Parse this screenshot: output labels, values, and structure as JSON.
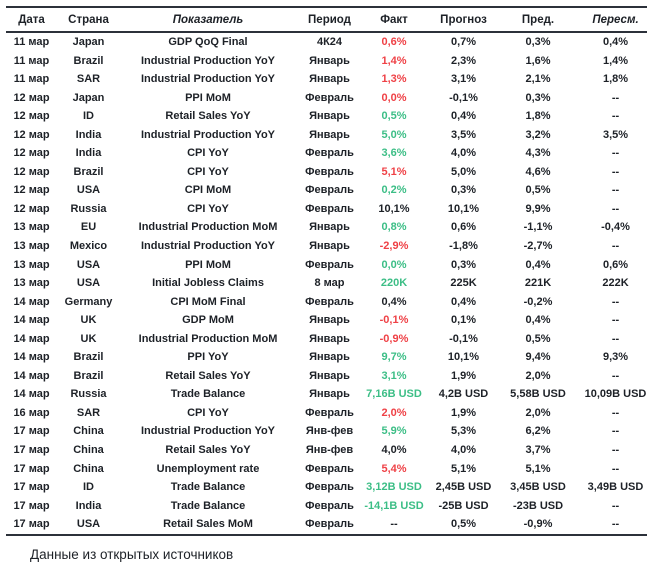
{
  "colors": {
    "negative": "#ef4146",
    "positive": "#3cbe86",
    "neutral": "#1d2127",
    "border": "#2c313a"
  },
  "table": {
    "columns": [
      {
        "key": "date",
        "label": "Дата",
        "italic": false
      },
      {
        "key": "country",
        "label": "Страна",
        "italic": false
      },
      {
        "key": "indicator",
        "label": "Показатель",
        "italic": true
      },
      {
        "key": "period",
        "label": "Период",
        "italic": false
      },
      {
        "key": "fact",
        "label": "Факт",
        "italic": false
      },
      {
        "key": "forecast",
        "label": "Прогноз",
        "italic": false
      },
      {
        "key": "previous",
        "label": "Пред.",
        "italic": false
      },
      {
        "key": "revised",
        "label": "Пересм.",
        "italic": true
      }
    ],
    "rows": [
      {
        "date": "11 мар",
        "country": "Japan",
        "indicator": "GDP QoQ Final",
        "period": "4К24",
        "fact": "0,6%",
        "fact_color": "down",
        "forecast": "0,7%",
        "previous": "0,3%",
        "revised": "0,4%"
      },
      {
        "date": "11 мар",
        "country": "Brazil",
        "indicator": "Industrial Production YoY",
        "period": "Январь",
        "fact": "1,4%",
        "fact_color": "down",
        "forecast": "2,3%",
        "previous": "1,6%",
        "revised": "1,4%"
      },
      {
        "date": "11 мар",
        "country": "SAR",
        "indicator": "Industrial Production YoY",
        "period": "Январь",
        "fact": "1,3%",
        "fact_color": "down",
        "forecast": "3,1%",
        "previous": "2,1%",
        "revised": "1,8%"
      },
      {
        "date": "12 мар",
        "country": "Japan",
        "indicator": "PPI MoM",
        "period": "Февраль",
        "fact": "0,0%",
        "fact_color": "down",
        "forecast": "-0,1%",
        "previous": "0,3%",
        "revised": "--"
      },
      {
        "date": "12 мар",
        "country": "ID",
        "indicator": "Retail Sales YoY",
        "period": "Январь",
        "fact": "0,5%",
        "fact_color": "up",
        "forecast": "0,4%",
        "previous": "1,8%",
        "revised": "--"
      },
      {
        "date": "12 мар",
        "country": "India",
        "indicator": "Industrial Production YoY",
        "period": "Январь",
        "fact": "5,0%",
        "fact_color": "up",
        "forecast": "3,5%",
        "previous": "3,2%",
        "revised": "3,5%"
      },
      {
        "date": "12 мар",
        "country": "India",
        "indicator": "CPI YoY",
        "period": "Февраль",
        "fact": "3,6%",
        "fact_color": "up",
        "forecast": "4,0%",
        "previous": "4,3%",
        "revised": "--"
      },
      {
        "date": "12 мар",
        "country": "Brazil",
        "indicator": "CPI YoY",
        "period": "Февраль",
        "fact": "5,1%",
        "fact_color": "down",
        "forecast": "5,0%",
        "previous": "4,6%",
        "revised": "--"
      },
      {
        "date": "12 мар",
        "country": "USA",
        "indicator": "CPI MoM",
        "period": "Февраль",
        "fact": "0,2%",
        "fact_color": "up",
        "forecast": "0,3%",
        "previous": "0,5%",
        "revised": "--"
      },
      {
        "date": "12 мар",
        "country": "Russia",
        "indicator": "CPI YoY",
        "period": "Февраль",
        "fact": "10,1%",
        "fact_color": "flat",
        "forecast": "10,1%",
        "previous": "9,9%",
        "revised": "--"
      },
      {
        "date": "13 мар",
        "country": "EU",
        "indicator": "Industrial Production MoM",
        "period": "Январь",
        "fact": "0,8%",
        "fact_color": "up",
        "forecast": "0,6%",
        "previous": "-1,1%",
        "revised": "-0,4%"
      },
      {
        "date": "13 мар",
        "country": "Mexico",
        "indicator": "Industrial Production YoY",
        "period": "Январь",
        "fact": "-2,9%",
        "fact_color": "down",
        "forecast": "-1,8%",
        "previous": "-2,7%",
        "revised": "--"
      },
      {
        "date": "13 мар",
        "country": "USA",
        "indicator": "PPI MoM",
        "period": "Февраль",
        "fact": "0,0%",
        "fact_color": "up",
        "forecast": "0,3%",
        "previous": "0,4%",
        "revised": "0,6%"
      },
      {
        "date": "13 мар",
        "country": "USA",
        "indicator": "Initial Jobless Claims",
        "period": "8 мар",
        "fact": "220K",
        "fact_color": "up",
        "forecast": "225K",
        "previous": "221K",
        "revised": "222K"
      },
      {
        "date": "14 мар",
        "country": "Germany",
        "indicator": "CPI MoM Final",
        "period": "Февраль",
        "fact": "0,4%",
        "fact_color": "flat",
        "forecast": "0,4%",
        "previous": "-0,2%",
        "revised": "--"
      },
      {
        "date": "14 мар",
        "country": "UK",
        "indicator": "GDP MoM",
        "period": "Январь",
        "fact": "-0,1%",
        "fact_color": "down",
        "forecast": "0,1%",
        "previous": "0,4%",
        "revised": "--"
      },
      {
        "date": "14 мар",
        "country": "UK",
        "indicator": "Industrial Production MoM",
        "period": "Январь",
        "fact": "-0,9%",
        "fact_color": "down",
        "forecast": "-0,1%",
        "previous": "0,5%",
        "revised": "--"
      },
      {
        "date": "14 мар",
        "country": "Brazil",
        "indicator": "PPI YoY",
        "period": "Январь",
        "fact": "9,7%",
        "fact_color": "up",
        "forecast": "10,1%",
        "previous": "9,4%",
        "revised": "9,3%"
      },
      {
        "date": "14 мар",
        "country": "Brazil",
        "indicator": "Retail Sales YoY",
        "period": "Январь",
        "fact": "3,1%",
        "fact_color": "up",
        "forecast": "1,9%",
        "previous": "2,0%",
        "revised": "--"
      },
      {
        "date": "14 мар",
        "country": "Russia",
        "indicator": "Trade Balance",
        "period": "Январь",
        "fact": "7,16B USD",
        "fact_color": "up",
        "forecast": "4,2B USD",
        "previous": "5,58B USD",
        "revised": "10,09B USD"
      },
      {
        "date": "16 мар",
        "country": "SAR",
        "indicator": "CPI YoY",
        "period": "Февраль",
        "fact": "2,0%",
        "fact_color": "down",
        "forecast": "1,9%",
        "previous": "2,0%",
        "revised": "--"
      },
      {
        "date": "17 мар",
        "country": "China",
        "indicator": "Industrial Production YoY",
        "period": "Янв-фев",
        "fact": "5,9%",
        "fact_color": "up",
        "forecast": "5,3%",
        "previous": "6,2%",
        "revised": "--"
      },
      {
        "date": "17 мар",
        "country": "China",
        "indicator": "Retail Sales YoY",
        "period": "Янв-фев",
        "fact": "4,0%",
        "fact_color": "flat",
        "forecast": "4,0%",
        "previous": "3,7%",
        "revised": "--"
      },
      {
        "date": "17 мар",
        "country": "China",
        "indicator": "Unemployment rate",
        "period": "Февраль",
        "fact": "5,4%",
        "fact_color": "down",
        "forecast": "5,1%",
        "previous": "5,1%",
        "revised": "--"
      },
      {
        "date": "17 мар",
        "country": "ID",
        "indicator": "Trade Balance",
        "period": "Февраль",
        "fact": "3,12B USD",
        "fact_color": "up",
        "forecast": "2,45B USD",
        "previous": "3,45B USD",
        "revised": "3,49B USD"
      },
      {
        "date": "17 мар",
        "country": "India",
        "indicator": "Trade Balance",
        "period": "Февраль",
        "fact": "-14,1B USD",
        "fact_color": "up",
        "forecast": "-25B USD",
        "previous": "-23B USD",
        "revised": "--"
      },
      {
        "date": "17 мар",
        "country": "USA",
        "indicator": "Retail Sales MoM",
        "period": "Февраль",
        "fact": "--",
        "fact_color": "flat",
        "forecast": "0,5%",
        "previous": "-0,9%",
        "revised": "--"
      }
    ]
  },
  "footer": {
    "source_note": "Данные из открытых источников"
  }
}
